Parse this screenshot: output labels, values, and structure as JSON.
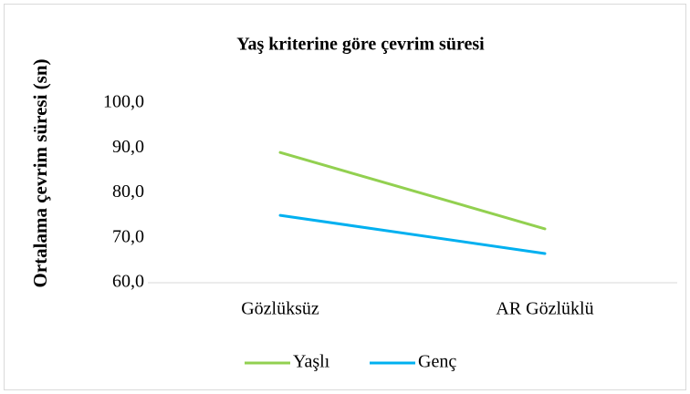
{
  "chart_data": {
    "type": "line",
    "title": "Yaş kriterine göre çevrim süresi",
    "y_label": "Ortalama çevrim süresi (sn)",
    "categories": [
      "Gözlüksüz",
      "AR Gözlüklü"
    ],
    "series": [
      {
        "name": "Yaşlı",
        "color": "#92d050",
        "values": [
          89.0,
          72.0
        ]
      },
      {
        "name": "Genç",
        "color": "#00b0f0",
        "values": [
          75.0,
          66.5
        ]
      }
    ],
    "ylim": [
      60,
      100
    ],
    "yticks": [
      {
        "value": 60,
        "label": "60,0"
      },
      {
        "value": 70,
        "label": "70,0"
      },
      {
        "value": 80,
        "label": "80,0"
      },
      {
        "value": 90,
        "label": "90,0"
      },
      {
        "value": 100,
        "label": "100,0"
      }
    ],
    "grid": false,
    "legend": "bottom"
  }
}
